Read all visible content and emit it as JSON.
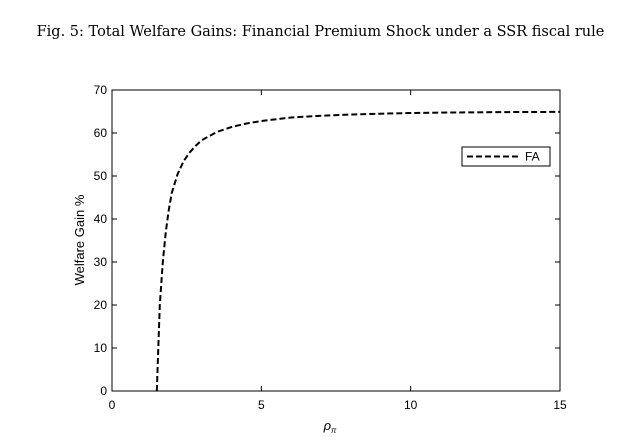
{
  "figure": {
    "title": "Fig. 5: Total Welfare Gains: Financial Premium Shock under a SSR fiscal rule"
  },
  "colors": {
    "background": "#ffffff",
    "axis": "#000000",
    "line": "#000000"
  },
  "chart_data": {
    "type": "line",
    "title": "",
    "xlabel": "ρ",
    "xlabel_subscript": "π",
    "ylabel": "Welfare Gain %",
    "xlim": [
      0,
      15
    ],
    "ylim": [
      0,
      70
    ],
    "xticks": [
      0,
      5,
      10,
      15
    ],
    "yticks": [
      0,
      10,
      20,
      30,
      40,
      50,
      60,
      70
    ],
    "grid": false,
    "legend_position": "upper-right",
    "series": [
      {
        "name": "FA",
        "line_style": "dashed",
        "color": "#000000",
        "x": [
          1.5,
          1.55,
          1.6,
          1.7,
          1.8,
          1.9,
          2.0,
          2.2,
          2.4,
          2.6,
          2.8,
          3.0,
          3.5,
          4.0,
          4.5,
          5.0,
          6.0,
          7.0,
          8.0,
          9.0,
          10.0,
          11.0,
          12.0,
          13.0,
          14.0,
          15.0
        ],
        "y": [
          0,
          10,
          20,
          30,
          37,
          42,
          46,
          50.5,
          53.5,
          55.5,
          57,
          58.3,
          60.2,
          61.4,
          62.2,
          62.8,
          63.6,
          64.0,
          64.3,
          64.5,
          64.65,
          64.75,
          64.8,
          64.85,
          64.88,
          64.9
        ]
      }
    ]
  }
}
